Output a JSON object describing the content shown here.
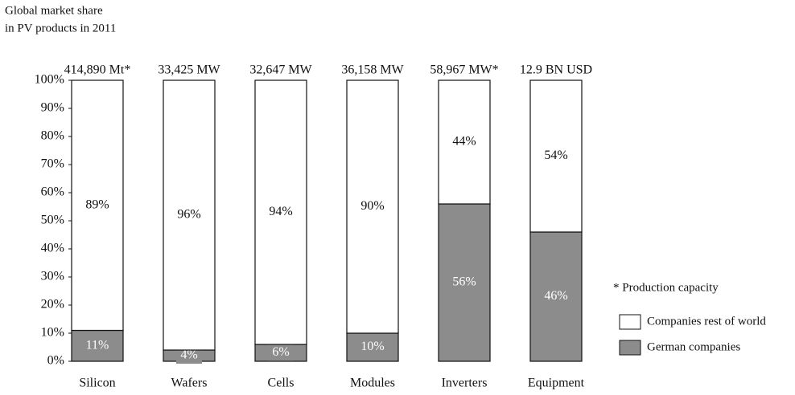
{
  "chart_data": {
    "type": "stacked_bar",
    "title": [
      "Global market share",
      "in PV products in 2011"
    ],
    "categories": [
      "Silicon",
      "Wafers",
      "Cells",
      "Modules",
      "Inverters",
      "Equipment"
    ],
    "bar_annotations": [
      "414,890 Mt*",
      "33,425 MW",
      "32,647 MW",
      "36,158 MW",
      "58,967 MW*",
      "12.9 BN USD"
    ],
    "series": [
      {
        "name": "German companies",
        "color": "#8c8c8c",
        "values": [
          11,
          4,
          6,
          10,
          56,
          46
        ],
        "value_labels": [
          "11%",
          "4%",
          "6%",
          "10%",
          "56%",
          "46%"
        ]
      },
      {
        "name": "Companies rest of world",
        "color": "#ffffff",
        "values": [
          89,
          96,
          94,
          90,
          44,
          54
        ],
        "value_labels": [
          "89%",
          "96%",
          "94%",
          "90%",
          "44%",
          "54%"
        ]
      }
    ],
    "ylim": [
      0,
      100
    ],
    "yticks": [
      {
        "value": 0,
        "label": "0%"
      },
      {
        "value": 10,
        "label": "10%"
      },
      {
        "value": 20,
        "label": "20%"
      },
      {
        "value": 30,
        "label": "30%"
      },
      {
        "value": 40,
        "label": "40%"
      },
      {
        "value": 50,
        "label": "50%"
      },
      {
        "value": 60,
        "label": "60%"
      },
      {
        "value": 70,
        "label": "70%"
      },
      {
        "value": 80,
        "label": "80%"
      },
      {
        "value": 90,
        "label": "90%"
      },
      {
        "value": 100,
        "label": "100%"
      }
    ],
    "note": "* Production capacity",
    "grid": false
  }
}
